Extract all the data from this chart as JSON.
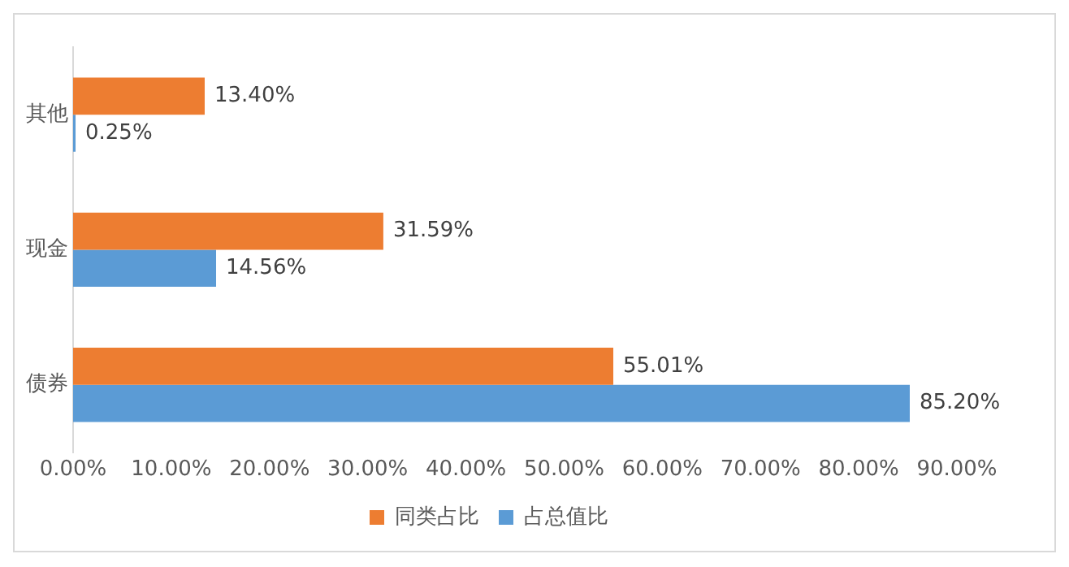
{
  "chart_data": {
    "type": "bar",
    "orientation": "horizontal",
    "categories": [
      "其他",
      "现金",
      "债券"
    ],
    "series": [
      {
        "name": "同类占比",
        "color": "#ed7d31",
        "values": [
          13.4,
          31.59,
          55.01
        ],
        "value_labels": [
          "13.40%",
          "31.59%",
          "55.01%"
        ]
      },
      {
        "name": "占总值比",
        "color": "#5b9bd5",
        "values": [
          0.25,
          14.56,
          85.2
        ],
        "value_labels": [
          "0.25%",
          "14.56%",
          "85.20%"
        ]
      }
    ],
    "xlim": [
      0,
      90
    ],
    "xticks": [
      {
        "value": 0,
        "label": "0.00%"
      },
      {
        "value": 10,
        "label": "10.00%"
      },
      {
        "value": 20,
        "label": "20.00%"
      },
      {
        "value": 30,
        "label": "30.00%"
      },
      {
        "value": 40,
        "label": "40.00%"
      },
      {
        "value": 50,
        "label": "50.00%"
      },
      {
        "value": 60,
        "label": "60.00%"
      },
      {
        "value": 70,
        "label": "70.00%"
      },
      {
        "value": 80,
        "label": "80.00%"
      },
      {
        "value": 90,
        "label": "90.00%"
      }
    ],
    "grid": false,
    "legend": "bottom"
  }
}
